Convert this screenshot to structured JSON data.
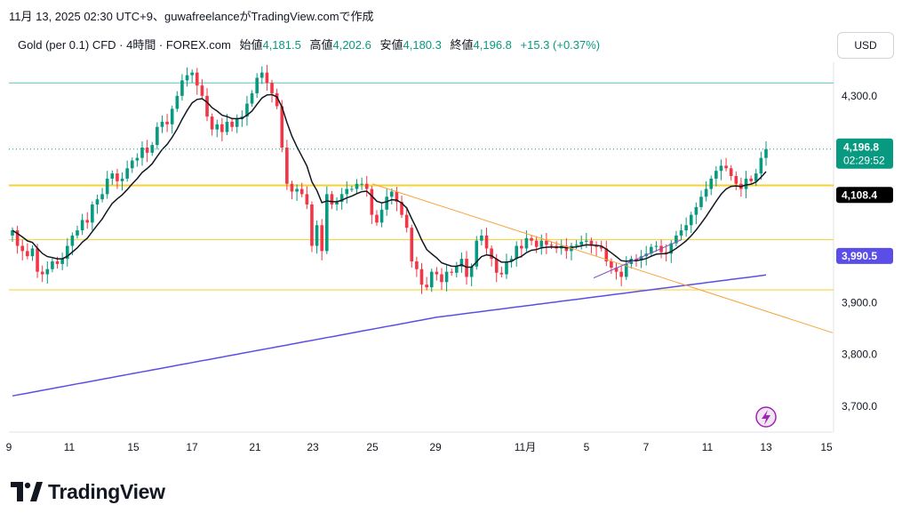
{
  "header": {
    "attribution": "11月 13, 2025 02:30 UTC+9、guwafreelanceがTradingView.comで作成"
  },
  "legend": {
    "symbol": "Gold (per 0.1) CFD · 4時間 · FOREX.com",
    "open_label": "始値",
    "open": "4,181.5",
    "high_label": "高値",
    "high": "4,202.6",
    "low_label": "安値",
    "low": "4,180.3",
    "close_label": "終値",
    "close": "4,196.8",
    "change": "+15.3 (+0.37%)"
  },
  "currency_button": "USD",
  "price_tags": {
    "last_price": "4,196.8",
    "countdown": "02:29:52",
    "fast_ma": "4,108.4",
    "slow_ma": "3,990.5"
  },
  "logo_text": "TradingView",
  "colors": {
    "up": "#089981",
    "down": "#f23645",
    "fast_ma": "#131722",
    "slow_ma": "#5b4ee8",
    "level_yellow": "#f7d12e",
    "trend_orange": "#f7a33b",
    "level_teal": "#5cc6b8",
    "alert": "#9c27b0"
  },
  "chart_data": {
    "type": "candlestick",
    "y_ticks": [
      "3,700.0",
      "3,800.0",
      "3,900.0",
      "4,300.0"
    ],
    "ylim": [
      3650,
      4365
    ],
    "x_ticks": [
      "9",
      "11",
      "15",
      "17",
      "21",
      "23",
      "25",
      "29",
      "11月",
      "5",
      "7",
      "11",
      "13",
      "15"
    ],
    "ohlc_close": [
      4040,
      4010,
      4000,
      3990,
      4005,
      3960,
      3955,
      3965,
      3980,
      3975,
      3985,
      4010,
      4030,
      4040,
      4060,
      4055,
      4090,
      4100,
      4110,
      4140,
      4150,
      4135,
      4140,
      4160,
      4175,
      4180,
      4200,
      4190,
      4205,
      4240,
      4250,
      4245,
      4275,
      4300,
      4330,
      4340,
      4345,
      4320,
      4300,
      4260,
      4235,
      4245,
      4230,
      4250,
      4240,
      4255,
      4260,
      4285,
      4305,
      4335,
      4345,
      4325,
      4305,
      4280,
      4200,
      4130,
      4115,
      4120,
      4110,
      4090,
      4010,
      4050,
      4000,
      4110,
      4090,
      4095,
      4110,
      4120,
      4120,
      4130,
      4130,
      4120,
      4070,
      4055,
      4080,
      4105,
      4115,
      4095,
      4070,
      4045,
      3980,
      3965,
      3935,
      3930,
      3960,
      3955,
      3940,
      3960,
      3958,
      3970,
      3985,
      3950,
      3970,
      4020,
      4030,
      4005,
      3985,
      3958,
      3955,
      3980,
      3985,
      4010,
      4005,
      4025,
      4020,
      4008,
      4020,
      4012,
      4010,
      4005,
      4010,
      4000,
      4010,
      4012,
      4018,
      4020,
      4010,
      4008,
      4005,
      3980,
      3968,
      3960,
      3950,
      3975,
      3985,
      3982,
      3990,
      3995,
      4008,
      4010,
      3998,
      3995,
      4015,
      4030,
      4040,
      4050,
      4070,
      4085,
      4105,
      4120,
      4140,
      4155,
      4165,
      4160,
      4145,
      4130,
      4120,
      4140,
      4135,
      4150,
      4180,
      4197
    ],
    "series": [
      {
        "name": "",
        "color": "#131722",
        "values": []
      },
      {
        "name": "",
        "color": "#5b4ee8",
        "values": []
      }
    ],
    "levels": [
      4325,
      4127,
      4022,
      3925
    ],
    "trendline": {
      "from": [
        "25",
        4130
      ],
      "to": [
        "15",
        3850
      ]
    }
  }
}
